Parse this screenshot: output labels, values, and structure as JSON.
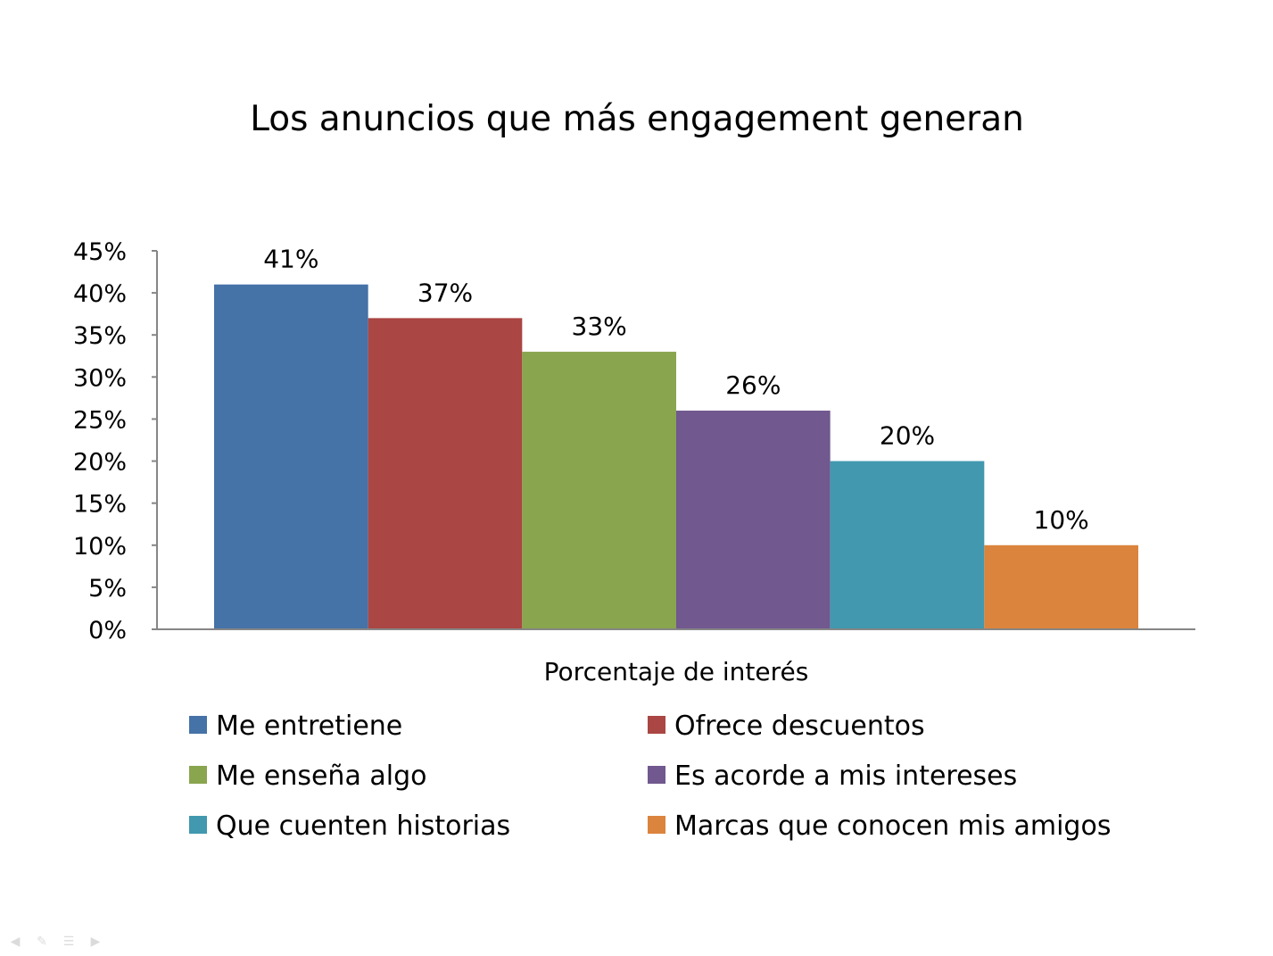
{
  "chart_data": {
    "type": "bar",
    "title": "Los anuncios que más engagement generan",
    "xlabel": "Porcentaje de interés",
    "ylabel": "",
    "ylim": [
      0,
      45
    ],
    "yticks": [
      "0%",
      "5%",
      "10%",
      "15%",
      "20%",
      "25%",
      "30%",
      "35%",
      "40%",
      "45%"
    ],
    "grid": false,
    "legend_position": "bottom",
    "series": [
      {
        "name": "Me entretiene",
        "values": [
          41
        ],
        "label": "41%",
        "color": "#4572A7"
      },
      {
        "name": "Ofrece descuentos",
        "values": [
          37
        ],
        "label": "37%",
        "color": "#AA4643"
      },
      {
        "name": "Me enseña algo",
        "values": [
          33
        ],
        "label": "33%",
        "color": "#89A54E"
      },
      {
        "name": "Es acorde a mis intereses",
        "values": [
          26
        ],
        "label": "26%",
        "color": "#71588F"
      },
      {
        "name": "Que cuenten historias",
        "values": [
          20
        ],
        "label": "20%",
        "color": "#4198AF"
      },
      {
        "name": "Marcas que conocen mis amigos",
        "values": [
          10
        ],
        "label": "10%",
        "color": "#DB843D"
      }
    ]
  },
  "nav": {
    "prev_icon": "previous-slide-icon",
    "pen_icon": "pen-icon",
    "menu_icon": "menu-icon",
    "next_icon": "next-slide-icon"
  }
}
